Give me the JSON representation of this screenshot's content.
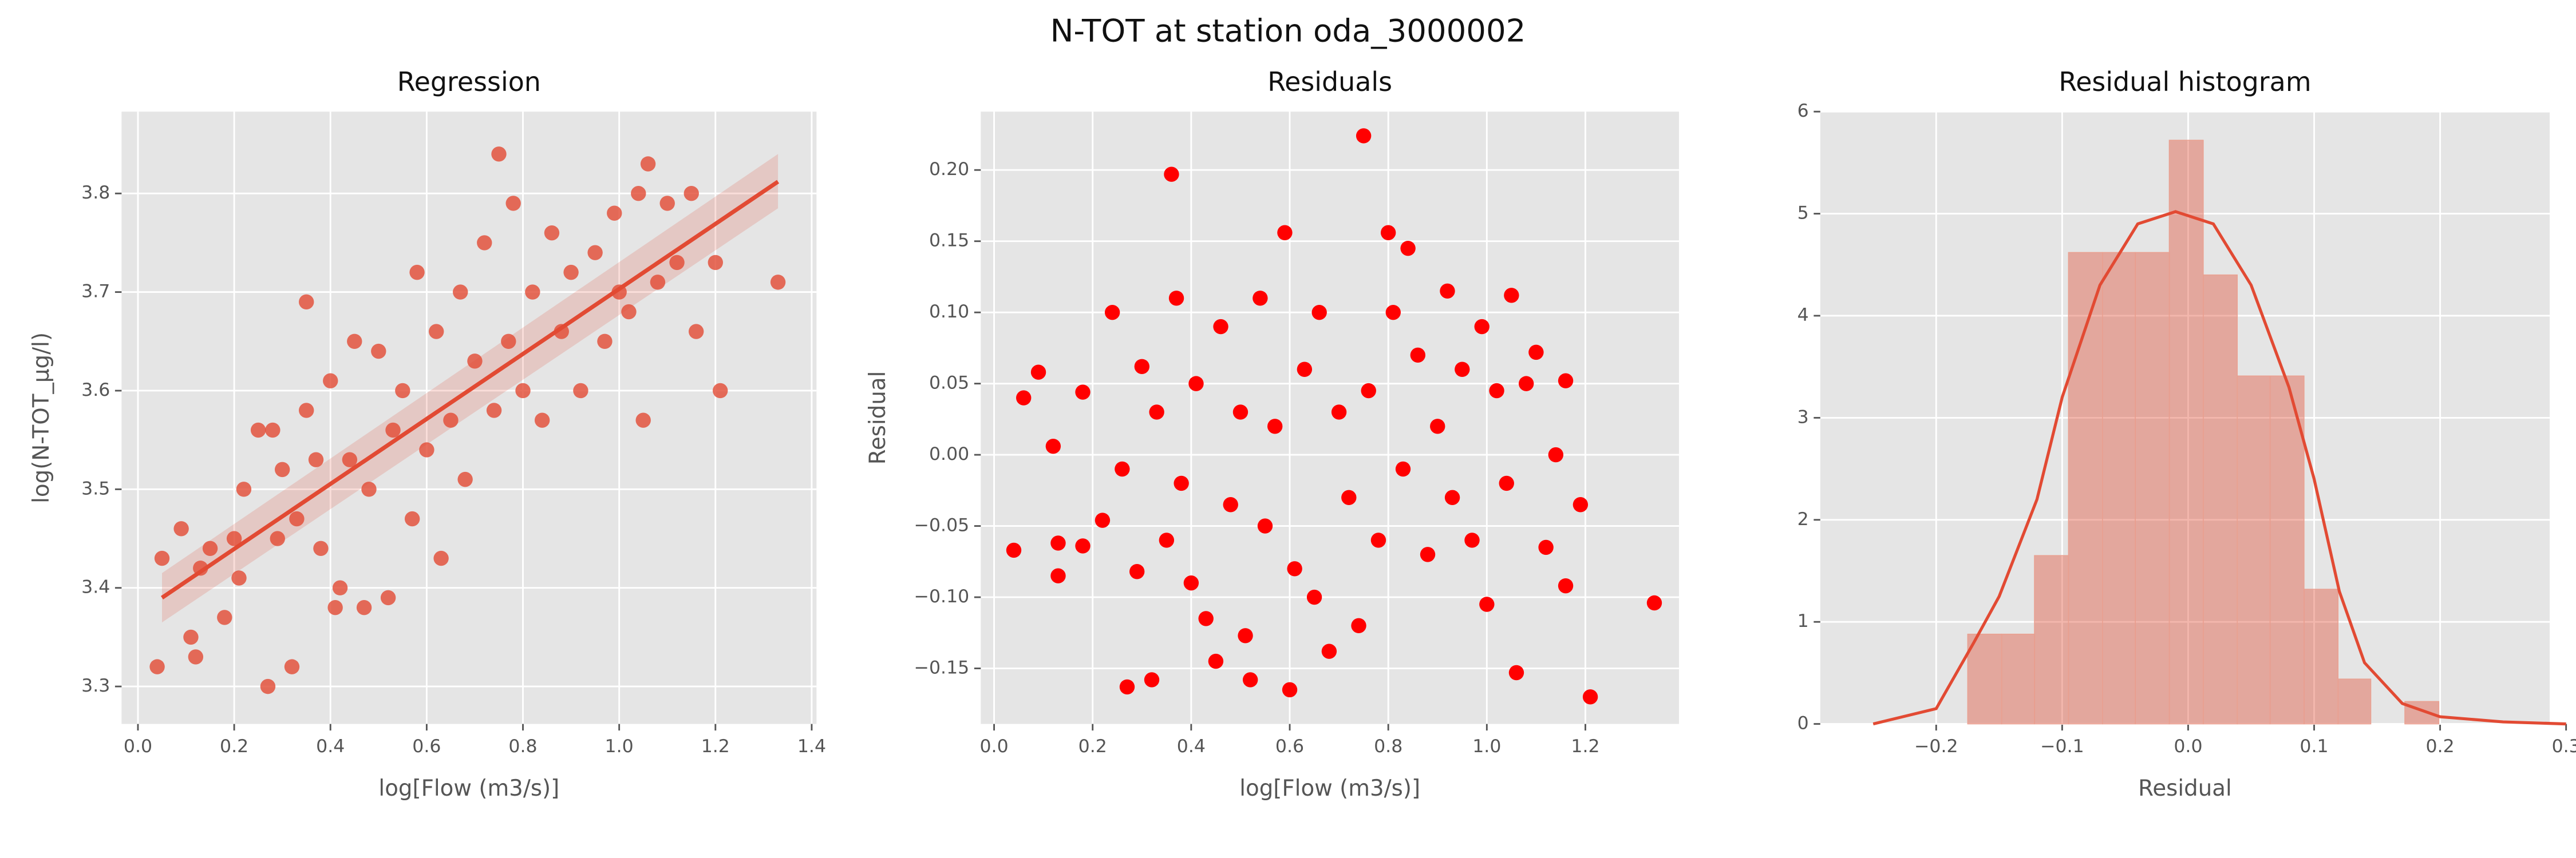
{
  "title": "N-TOT at station oda_3000002",
  "chart_data": [
    {
      "type": "regression",
      "title": "Regression",
      "xlabel": "log[Flow (m3/s)]",
      "ylabel": "log(N-TOT_µg/l)",
      "color": "#e24a33",
      "grid": true,
      "xlim": [
        -0.034,
        1.41
      ],
      "ylim": [
        3.262,
        3.883
      ],
      "xticks": [
        {
          "value": 0,
          "label": "0.0"
        },
        0.2,
        0.4,
        0.6,
        0.8,
        {
          "value": 1,
          "label": "1.0"
        },
        1.2,
        1.4
      ],
      "yticks": [
        3.3,
        3.4,
        3.5,
        3.6,
        3.7,
        3.8
      ],
      "x": [
        0.04,
        0.05,
        0.09,
        0.11,
        0.12,
        0.13,
        0.15,
        0.18,
        0.2,
        0.21,
        0.22,
        0.25,
        0.27,
        0.28,
        0.29,
        0.3,
        0.32,
        0.33,
        0.35,
        0.35,
        0.37,
        0.38,
        0.4,
        0.41,
        0.42,
        0.44,
        0.45,
        0.47,
        0.48,
        0.5,
        0.52,
        0.53,
        0.55,
        0.57,
        0.58,
        0.6,
        0.62,
        0.63,
        0.65,
        0.67,
        0.68,
        0.7,
        0.72,
        0.74,
        0.75,
        0.77,
        0.78,
        0.8,
        0.82,
        0.84,
        0.86,
        0.88,
        0.9,
        0.92,
        0.95,
        0.97,
        0.99,
        1.0,
        1.02,
        1.04,
        1.05,
        1.06,
        1.08,
        1.1,
        1.12,
        1.15,
        1.16,
        1.2,
        1.21,
        1.33
      ],
      "values": [
        3.32,
        3.43,
        3.46,
        3.35,
        3.33,
        3.42,
        3.44,
        3.37,
        3.45,
        3.41,
        3.5,
        3.56,
        3.3,
        3.56,
        3.45,
        3.52,
        3.32,
        3.47,
        3.58,
        3.69,
        3.53,
        3.44,
        3.61,
        3.38,
        3.4,
        3.53,
        3.65,
        3.38,
        3.5,
        3.64,
        3.39,
        3.56,
        3.6,
        3.47,
        3.72,
        3.54,
        3.66,
        3.43,
        3.57,
        3.7,
        3.51,
        3.63,
        3.75,
        3.58,
        3.84,
        3.65,
        3.79,
        3.6,
        3.7,
        3.57,
        3.76,
        3.66,
        3.72,
        3.6,
        3.74,
        3.65,
        3.78,
        3.7,
        3.68,
        3.8,
        3.57,
        3.83,
        3.71,
        3.79,
        3.73,
        3.8,
        3.66,
        3.73,
        3.6,
        3.71
      ],
      "fit": {
        "x": [
          0.05,
          1.33
        ],
        "values": [
          3.39,
          3.812
        ],
        "lower": [
          3.365,
          3.785
        ],
        "upper": [
          3.415,
          3.84
        ]
      }
    },
    {
      "type": "scatter",
      "title": "Residuals",
      "xlabel": "log[Flow (m3/s)]",
      "ylabel": "Residual",
      "color": "#ff0000",
      "grid": true,
      "xlim": [
        -0.027,
        1.39
      ],
      "ylim": [
        -0.189,
        0.241
      ],
      "xticks": [
        {
          "value": 0,
          "label": "0.0"
        },
        0.2,
        0.4,
        0.6,
        0.8,
        {
          "value": 1,
          "label": "1.0"
        },
        1.2
      ],
      "yticks": [
        {
          "value": -0.15,
          "label": "−0.15"
        },
        {
          "value": -0.1,
          "label": "−0.10"
        },
        {
          "value": -0.05,
          "label": "−0.05"
        },
        {
          "value": 0,
          "label": "0.00"
        },
        0.05,
        {
          "value": 0.1,
          "label": "0.10"
        },
        0.15,
        {
          "value": 0.2,
          "label": "0.20"
        }
      ],
      "x": [
        0.04,
        0.06,
        0.09,
        0.12,
        0.13,
        0.13,
        0.18,
        0.18,
        0.22,
        0.24,
        0.26,
        0.27,
        0.29,
        0.3,
        0.32,
        0.33,
        0.35,
        0.36,
        0.37,
        0.38,
        0.4,
        0.41,
        0.43,
        0.45,
        0.46,
        0.48,
        0.5,
        0.51,
        0.52,
        0.54,
        0.55,
        0.57,
        0.59,
        0.6,
        0.61,
        0.63,
        0.65,
        0.66,
        0.68,
        0.7,
        0.72,
        0.74,
        0.75,
        0.76,
        0.78,
        0.8,
        0.81,
        0.83,
        0.84,
        0.86,
        0.88,
        0.9,
        0.92,
        0.93,
        0.95,
        0.97,
        0.99,
        1.0,
        1.02,
        1.04,
        1.05,
        1.06,
        1.08,
        1.1,
        1.12,
        1.14,
        1.16,
        1.16,
        1.19,
        1.21,
        1.34
      ],
      "values": [
        -0.067,
        0.04,
        0.058,
        0.006,
        -0.085,
        -0.062,
        0.044,
        -0.064,
        -0.046,
        0.1,
        -0.01,
        -0.163,
        -0.082,
        0.062,
        -0.158,
        0.03,
        -0.06,
        0.197,
        0.11,
        -0.02,
        -0.09,
        0.05,
        -0.115,
        -0.145,
        0.09,
        -0.035,
        0.03,
        -0.127,
        -0.158,
        0.11,
        -0.05,
        0.02,
        0.156,
        -0.165,
        -0.08,
        0.06,
        -0.1,
        0.1,
        -0.138,
        0.03,
        -0.03,
        -0.12,
        0.224,
        0.045,
        -0.06,
        0.156,
        0.1,
        -0.01,
        0.145,
        0.07,
        -0.07,
        0.02,
        0.115,
        -0.03,
        0.06,
        -0.06,
        0.09,
        -0.105,
        0.045,
        -0.02,
        0.112,
        -0.153,
        0.05,
        0.072,
        -0.065,
        0.0,
        0.052,
        -0.092,
        -0.035,
        -0.17,
        -0.104
      ]
    },
    {
      "type": "histogram",
      "title": "Residual histogram",
      "xlabel": "Residual",
      "color": "#e24a33",
      "grid": true,
      "xlim": [
        -0.292,
        0.287
      ],
      "ylim": [
        0,
        6
      ],
      "xticks": [
        {
          "value": -0.2,
          "label": "−0.2"
        },
        {
          "value": -0.1,
          "label": "−0.1"
        },
        {
          "value": 0,
          "label": "0.0"
        },
        0.1,
        0.2,
        0.3
      ],
      "yticks": [
        0,
        1,
        2,
        3,
        4,
        5,
        6
      ],
      "bins": [
        -0.175,
        -0.148,
        -0.122,
        -0.095,
        -0.068,
        -0.042,
        -0.015,
        0.012,
        0.039,
        0.065,
        0.092,
        0.119,
        0.145,
        0.172,
        0.199
      ],
      "values": [
        0.88,
        0.88,
        1.65,
        4.62,
        4.62,
        4.62,
        5.72,
        4.4,
        3.41,
        3.41,
        1.32,
        0.44,
        0,
        0.22
      ],
      "kde": {
        "x": [
          -0.25,
          -0.2,
          -0.17,
          -0.15,
          -0.12,
          -0.1,
          -0.07,
          -0.04,
          -0.01,
          0.02,
          0.05,
          0.08,
          0.1,
          0.12,
          0.14,
          0.17,
          0.2,
          0.25,
          0.3
        ],
        "values": [
          0,
          0.15,
          0.8,
          1.25,
          2.2,
          3.2,
          4.3,
          4.9,
          5.02,
          4.9,
          4.3,
          3.3,
          2.4,
          1.3,
          0.6,
          0.2,
          0.07,
          0.02,
          0
        ]
      }
    }
  ]
}
